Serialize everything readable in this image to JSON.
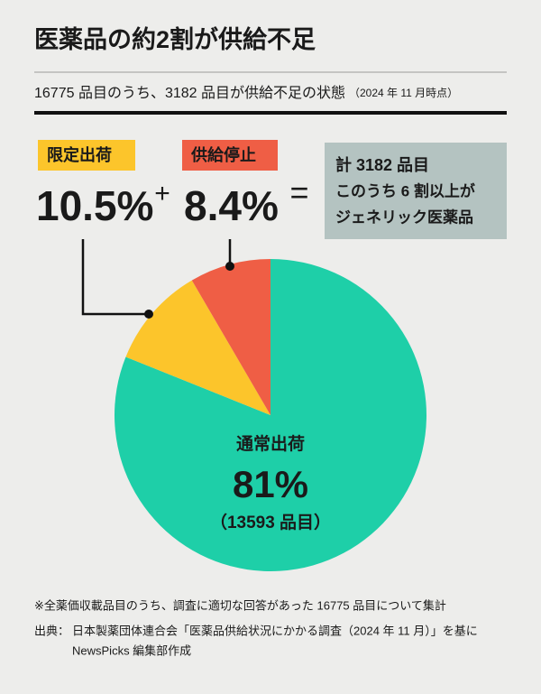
{
  "chart_data": {
    "type": "pie",
    "title": "医薬品の約2割が供給不足",
    "subtitle": "16775 品目のうち、3182 品目が供給不足の状態",
    "subtitle_note": "（2024 年 11 月時点）",
    "categories": [
      "通常出荷",
      "限定出荷",
      "供給停止"
    ],
    "values": [
      81,
      10.5,
      8.4
    ],
    "value_labels": [
      "81%",
      "10.5%",
      "8.4%"
    ],
    "colors": [
      "#1ecfa8",
      "#fcc52b",
      "#ef5e45"
    ],
    "count_label": "（13593 品目）",
    "operators": [
      "+",
      "="
    ],
    "callout": [
      "計 3182 品目",
      "このうち 6 割以上が",
      "ジェネリック医薬品"
    ],
    "notes": [
      "※全薬価収載品目のうち、調査に適切な回答があった 16775 品目について集計"
    ],
    "source_label": "出典：",
    "source": [
      "日本製薬団体連合会「医薬品供給状況にかかる調査（2024 年 11 月）」を基に",
      "NewsPicks 編集部作成"
    ]
  }
}
